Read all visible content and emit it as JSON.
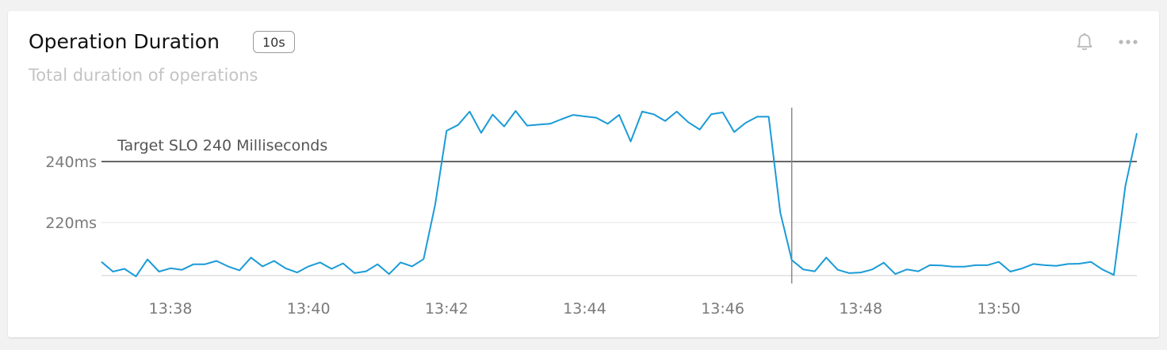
{
  "panel": {
    "title": "Operation Duration",
    "interval_badge": "10s",
    "subtitle": "Total duration of operations",
    "icons": [
      "bell-icon",
      "more-icon"
    ]
  },
  "chart_data": {
    "type": "line",
    "x_start": "13:37",
    "x_interval": "10s",
    "x_tick_labels": [
      "13:38",
      "13:40",
      "13:42",
      "13:44",
      "13:46",
      "13:48",
      "13:50"
    ],
    "y_tick_labels": [
      "220ms",
      "240ms"
    ],
    "ylim": [
      204,
      258
    ],
    "color": "#1a9bd7",
    "series": [
      {
        "values": [
          207.1,
          203.9,
          204.8,
          202.3,
          207.9,
          203.9,
          205.0,
          204.5,
          206.3,
          206.3,
          207.4,
          205.6,
          204.3,
          208.5,
          205.6,
          207.4,
          205.0,
          203.6,
          205.6,
          206.9,
          204.8,
          206.6,
          203.4,
          204.0,
          206.3,
          203.1,
          206.9,
          205.6,
          208.0,
          225.7,
          250.1,
          252.0,
          256.4,
          249.4,
          255.4,
          251.5,
          256.6,
          251.8,
          252.1,
          252.4,
          253.9,
          255.3,
          254.8,
          254.4,
          252.4,
          255.3,
          246.6,
          256.4,
          255.5,
          253.3,
          256.4,
          252.9,
          250.5,
          255.5,
          256.1,
          249.7,
          252.7,
          254.7,
          254.7,
          223.3,
          207.7,
          204.6,
          204.0,
          208.5,
          204.5,
          203.4,
          203.6,
          204.6,
          206.8,
          203.1,
          204.6,
          204.0,
          206.0,
          205.9,
          205.5,
          205.5,
          206.0,
          206.0,
          207.1,
          203.9,
          204.9,
          206.4,
          206.0,
          205.8,
          206.4,
          206.5,
          207.1,
          204.6,
          202.8,
          232.0,
          249.3
        ]
      }
    ],
    "reference_line": {
      "value": 240,
      "label": "Target SLO 240 Milliseconds",
      "color": "#666666"
    },
    "cursor_time": "13:47",
    "grid": true,
    "legend": "none"
  }
}
